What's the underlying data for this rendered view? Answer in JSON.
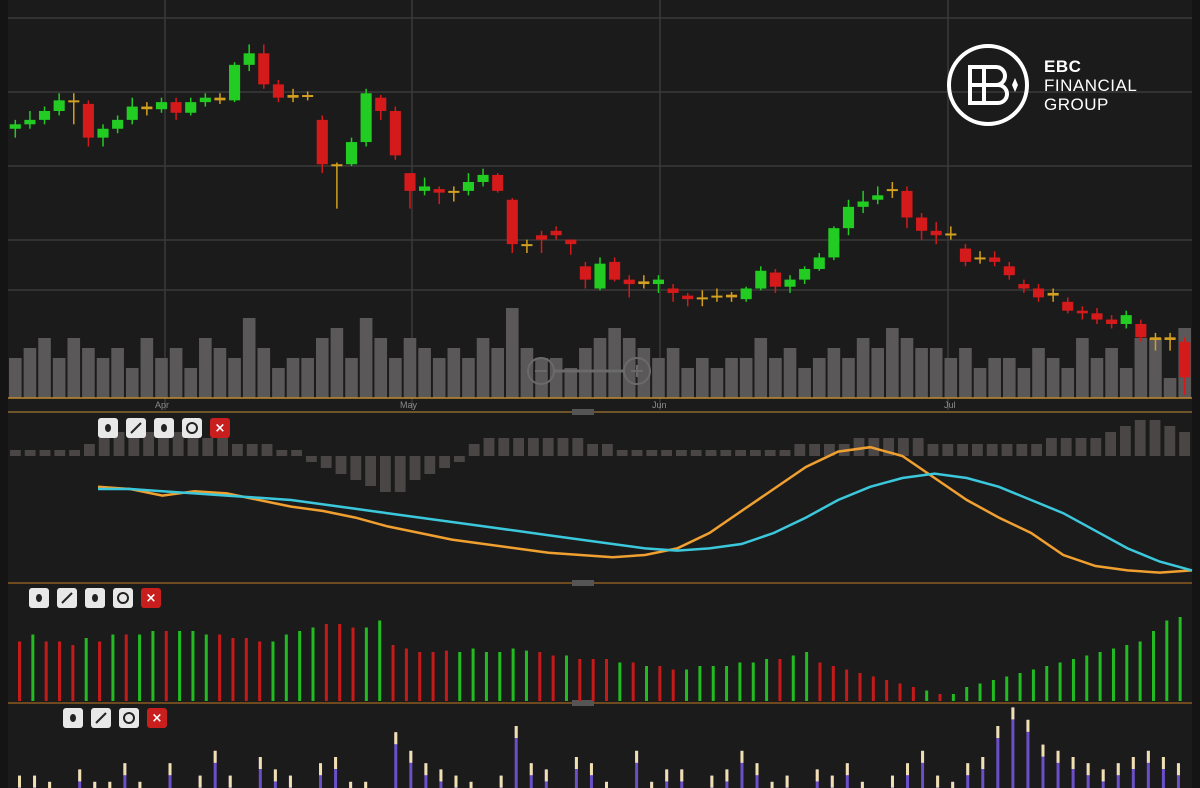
{
  "brand": {
    "line1": "EBC",
    "line2": "FINANCIAL",
    "line3": "GROUP"
  },
  "colors": {
    "up": "#22cc22",
    "down": "#d41a1a",
    "doji": "#d4a020",
    "volume": "#5a5858",
    "macd_fast": "#f0a030",
    "macd_slow": "#3cc8dc",
    "hist_up": "#22bb22",
    "hist_down": "#c41a1a",
    "bottom_bars": "#6a4fc8"
  },
  "months": [
    "Apr",
    "May",
    "Jun",
    "Jul"
  ],
  "toolbars": [
    {
      "icons": [
        "dot-icon",
        "pencil-icon",
        "dot-icon",
        "circle-icon",
        "close-icon"
      ],
      "close_label": "×"
    },
    {
      "icons": [
        "dot-icon",
        "pencil-icon",
        "dot-icon",
        "circle-icon",
        "close-icon"
      ],
      "close_label": "×"
    },
    {
      "icons": [
        "dot-icon",
        "pencil-icon",
        "circle-icon",
        "close-icon"
      ],
      "close_label": "×"
    }
  ],
  "chart_data": [
    {
      "type": "candlestick",
      "title": "",
      "grid": true,
      "candles": [
        [
          4.5,
          4.6,
          4.4,
          4.55
        ],
        [
          4.55,
          4.7,
          4.5,
          4.6
        ],
        [
          4.6,
          4.75,
          4.55,
          4.7
        ],
        [
          4.7,
          4.9,
          4.65,
          4.82
        ],
        [
          4.82,
          4.9,
          4.55,
          4.8
        ],
        [
          4.78,
          4.82,
          4.3,
          4.4
        ],
        [
          4.4,
          4.55,
          4.3,
          4.5
        ],
        [
          4.5,
          4.65,
          4.45,
          4.6
        ],
        [
          4.6,
          4.85,
          4.55,
          4.75
        ],
        [
          4.75,
          4.8,
          4.65,
          4.72
        ],
        [
          4.72,
          4.85,
          4.68,
          4.8
        ],
        [
          4.8,
          4.85,
          4.6,
          4.68
        ],
        [
          4.68,
          4.85,
          4.65,
          4.8
        ],
        [
          4.8,
          4.9,
          4.75,
          4.85
        ],
        [
          4.85,
          4.9,
          4.78,
          4.82
        ],
        [
          4.82,
          5.25,
          4.8,
          5.22
        ],
        [
          5.22,
          5.45,
          5.15,
          5.35
        ],
        [
          5.35,
          5.45,
          4.95,
          5.0
        ],
        [
          5.0,
          5.05,
          4.8,
          4.85
        ],
        [
          4.85,
          4.95,
          4.8,
          4.88
        ],
        [
          4.88,
          4.92,
          4.82,
          4.86
        ],
        [
          4.6,
          4.65,
          4.0,
          4.1
        ],
        [
          4.1,
          4.12,
          3.6,
          4.1
        ],
        [
          4.1,
          4.4,
          4.08,
          4.35
        ],
        [
          4.35,
          4.95,
          4.3,
          4.9
        ],
        [
          4.85,
          4.88,
          4.6,
          4.7
        ],
        [
          4.7,
          4.75,
          4.15,
          4.2
        ],
        [
          4.0,
          4.0,
          3.6,
          3.8
        ],
        [
          3.8,
          3.95,
          3.75,
          3.85
        ],
        [
          3.82,
          3.85,
          3.65,
          3.78
        ],
        [
          3.78,
          3.85,
          3.68,
          3.8
        ],
        [
          3.8,
          4.0,
          3.75,
          3.9
        ],
        [
          3.9,
          4.05,
          3.85,
          3.98
        ],
        [
          3.98,
          4.0,
          3.78,
          3.8
        ],
        [
          3.7,
          3.72,
          3.1,
          3.2
        ],
        [
          3.2,
          3.25,
          3.1,
          3.18
        ],
        [
          3.3,
          3.35,
          3.1,
          3.25
        ],
        [
          3.35,
          3.4,
          3.25,
          3.3
        ],
        [
          3.25,
          3.25,
          3.08,
          3.2
        ],
        [
          2.95,
          3.0,
          2.7,
          2.8
        ],
        [
          2.7,
          3.05,
          2.68,
          2.98
        ],
        [
          3.0,
          3.05,
          2.78,
          2.8
        ],
        [
          2.8,
          2.85,
          2.6,
          2.75
        ],
        [
          2.75,
          2.85,
          2.7,
          2.78
        ],
        [
          2.75,
          2.85,
          2.65,
          2.8
        ],
        [
          2.7,
          2.75,
          2.55,
          2.65
        ],
        [
          2.62,
          2.65,
          2.5,
          2.58
        ],
        [
          2.58,
          2.68,
          2.5,
          2.6
        ],
        [
          2.6,
          2.7,
          2.55,
          2.62
        ],
        [
          2.6,
          2.66,
          2.55,
          2.63
        ],
        [
          2.58,
          2.72,
          2.55,
          2.7
        ],
        [
          2.7,
          2.95,
          2.68,
          2.9
        ],
        [
          2.88,
          2.92,
          2.65,
          2.72
        ],
        [
          2.72,
          2.85,
          2.65,
          2.8
        ],
        [
          2.8,
          2.95,
          2.75,
          2.92
        ],
        [
          2.92,
          3.1,
          2.9,
          3.05
        ],
        [
          3.05,
          3.4,
          3.02,
          3.38
        ],
        [
          3.38,
          3.7,
          3.3,
          3.62
        ],
        [
          3.62,
          3.8,
          3.55,
          3.68
        ],
        [
          3.7,
          3.85,
          3.65,
          3.75
        ],
        [
          3.8,
          3.9,
          3.72,
          3.82
        ],
        [
          3.8,
          3.85,
          3.38,
          3.5
        ],
        [
          3.5,
          3.55,
          3.25,
          3.35
        ],
        [
          3.35,
          3.45,
          3.2,
          3.3
        ],
        [
          3.3,
          3.4,
          3.25,
          3.32
        ],
        [
          3.15,
          3.2,
          2.95,
          3.0
        ],
        [
          3.05,
          3.12,
          2.98,
          3.05
        ],
        [
          3.05,
          3.12,
          2.95,
          3.0
        ],
        [
          2.95,
          3.0,
          2.8,
          2.85
        ],
        [
          2.75,
          2.8,
          2.65,
          2.7
        ],
        [
          2.7,
          2.75,
          2.55,
          2.6
        ],
        [
          2.65,
          2.7,
          2.55,
          2.62
        ],
        [
          2.55,
          2.6,
          2.42,
          2.45
        ],
        [
          2.45,
          2.5,
          2.35,
          2.42
        ],
        [
          2.42,
          2.48,
          2.3,
          2.35
        ],
        [
          2.35,
          2.4,
          2.25,
          2.3
        ],
        [
          2.3,
          2.45,
          2.25,
          2.4
        ],
        [
          2.3,
          2.35,
          2.1,
          2.15
        ],
        [
          2.15,
          2.2,
          2.0,
          2.12
        ],
        [
          2.12,
          2.2,
          2.0,
          2.15
        ],
        [
          2.1,
          2.15,
          1.5,
          1.7
        ]
      ],
      "volume": [
        4,
        5,
        6,
        4,
        6,
        5,
        4,
        5,
        3,
        6,
        4,
        5,
        3,
        6,
        5,
        4,
        8,
        5,
        3,
        4,
        4,
        6,
        7,
        4,
        8,
        6,
        4,
        6,
        5,
        4,
        5,
        4,
        6,
        5,
        9,
        5,
        4,
        4,
        3,
        5,
        6,
        7,
        6,
        5,
        4,
        5,
        3,
        4,
        3,
        4,
        4,
        6,
        4,
        5,
        3,
        4,
        5,
        4,
        6,
        5,
        7,
        6,
        5,
        5,
        4,
        5,
        3,
        4,
        4,
        3,
        5,
        4,
        3,
        6,
        4,
        5,
        3,
        6,
        6,
        2,
        7
      ]
    },
    {
      "type": "line",
      "title": "",
      "series": [
        {
          "values": [
            6,
            5,
            2,
            4,
            3,
            0,
            -3,
            -5,
            -8,
            -12,
            -15,
            -18,
            -20,
            -22,
            -24,
            -25,
            -26,
            -25,
            -22,
            -15,
            -5,
            5,
            15,
            22,
            24,
            20,
            10,
            0,
            -8,
            -15,
            -25,
            -30,
            -32,
            -33,
            -32
          ]
        },
        {
          "values": [
            5,
            5,
            4,
            3,
            2,
            1,
            0,
            -2,
            -4,
            -6,
            -8,
            -10,
            -12,
            -14,
            -16,
            -18,
            -20,
            -22,
            -23,
            -22,
            -20,
            -15,
            -8,
            0,
            6,
            10,
            12,
            10,
            6,
            0,
            -6,
            -14,
            -22,
            -28,
            -32
          ]
        }
      ],
      "histogram": [
        1,
        1,
        1,
        1,
        1,
        2,
        3,
        4,
        4,
        4,
        4,
        4,
        3,
        3,
        3,
        2,
        2,
        2,
        1,
        1,
        -1,
        -2,
        -3,
        -4,
        -5,
        -6,
        -6,
        -4,
        -3,
        -2,
        -1,
        2,
        3,
        3,
        3,
        3,
        3,
        3,
        3,
        2,
        2,
        1,
        1,
        1,
        1,
        1,
        1,
        1,
        1,
        1,
        1,
        1,
        1,
        2,
        2,
        2,
        2,
        3,
        3,
        3,
        3,
        3,
        2,
        2,
        2,
        2,
        2,
        2,
        2,
        2,
        3,
        3,
        3,
        3,
        4,
        5,
        6,
        6,
        5,
        4
      ]
    },
    {
      "type": "bar",
      "title": "",
      "values": [
        -0.85,
        0.95,
        -0.85,
        -0.85,
        -0.8,
        0.9,
        -0.85,
        0.95,
        -0.95,
        0.95,
        1.0,
        -1.0,
        1.0,
        1.0,
        0.95,
        -0.95,
        -0.9,
        -0.9,
        -0.85,
        0.85,
        0.95,
        1.0,
        1.05,
        -1.1,
        -1.1,
        -1.05,
        1.05,
        1.15,
        -0.8,
        -0.75,
        -0.7,
        -0.7,
        -0.72,
        0.7,
        0.75,
        0.7,
        0.7,
        0.75,
        0.72,
        -0.7,
        -0.65,
        0.65,
        -0.6,
        -0.6,
        -0.6,
        0.55,
        -0.55,
        0.5,
        -0.5,
        -0.45,
        0.45,
        0.5,
        0.5,
        0.5,
        0.55,
        0.55,
        0.6,
        -0.6,
        0.65,
        0.7,
        -0.55,
        -0.5,
        -0.45,
        -0.4,
        -0.35,
        -0.3,
        -0.25,
        -0.2,
        0.15,
        -0.1,
        0.1,
        0.2,
        0.25,
        0.3,
        0.35,
        0.4,
        0.45,
        0.5,
        0.55,
        0.6,
        0.65,
        0.7,
        0.75,
        0.8,
        0.85,
        1.0,
        1.15,
        1.2
      ]
    },
    {
      "type": "bar",
      "title": "",
      "values": [
        0.2,
        0.2,
        0.1,
        0.0,
        0.3,
        0.1,
        0.1,
        0.4,
        0.1,
        0.0,
        0.4,
        0.0,
        0.2,
        0.6,
        0.2,
        0.0,
        0.5,
        0.3,
        0.2,
        0.0,
        0.4,
        0.5,
        0.1,
        0.1,
        0.0,
        0.9,
        0.6,
        0.4,
        0.3,
        0.2,
        0.1,
        0.0,
        0.2,
        1.0,
        0.4,
        0.3,
        0.0,
        0.5,
        0.4,
        0.1,
        0.0,
        0.6,
        0.1,
        0.3,
        0.3,
        0.0,
        0.2,
        0.3,
        0.6,
        0.4,
        0.1,
        0.2,
        0.0,
        0.3,
        0.2,
        0.4,
        0.1,
        0.0,
        0.2,
        0.4,
        0.6,
        0.2,
        0.1,
        0.4,
        0.5,
        1.0,
        1.3,
        1.1,
        0.7,
        0.6,
        0.5,
        0.4,
        0.3,
        0.4,
        0.5,
        0.6,
        0.5,
        0.4
      ]
    }
  ]
}
